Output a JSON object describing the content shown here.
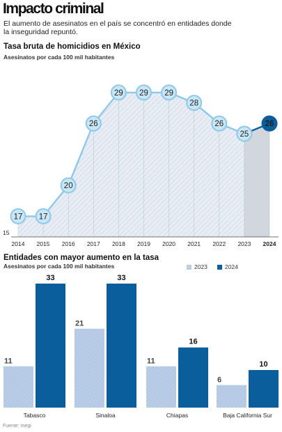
{
  "header": {
    "title": "Impacto criminal",
    "subtitle": "El aumento de asesinatos en el país se concentró en entidades donde la inseguridad repuntó."
  },
  "colors": {
    "accent": "#0b5e9c",
    "light_blue": "#8ec8e8",
    "point_fill": "#c9e6f5",
    "bar_2023": "#b9cde6",
    "bar_2024": "#0b5e9c",
    "area_fill": "#e8edf5",
    "shade_2024": "#d2d6dd"
  },
  "chart_data": [
    {
      "type": "area",
      "title": "Tasa bruta de homicidios en México",
      "subtitle": "Asesinatos por cada 100 mil habitantes",
      "x": [
        "2014",
        "2015",
        "2016",
        "2017",
        "2018",
        "2019",
        "2020",
        "2021",
        "2022",
        "2023",
        "2024"
      ],
      "values": [
        17,
        17,
        20,
        26,
        29,
        29,
        29,
        28,
        26,
        25,
        26
      ],
      "y_min_label": "15",
      "ylim": [
        15,
        30
      ],
      "highlight": "2024"
    },
    {
      "type": "bar",
      "title": "Entidades con mayor aumento en la tasa",
      "subtitle": "Asesinatos por cada 100 mil habitantes",
      "categories": [
        "Tabasco",
        "Sinaloa",
        "Chiapas",
        "Baja California Sur"
      ],
      "series": [
        {
          "name": "2023",
          "values": [
            11,
            21,
            11,
            6
          ]
        },
        {
          "name": "2024",
          "values": [
            33,
            33,
            16,
            10
          ]
        }
      ],
      "legend": "top-right"
    }
  ],
  "source": "Fuente: Inegi"
}
